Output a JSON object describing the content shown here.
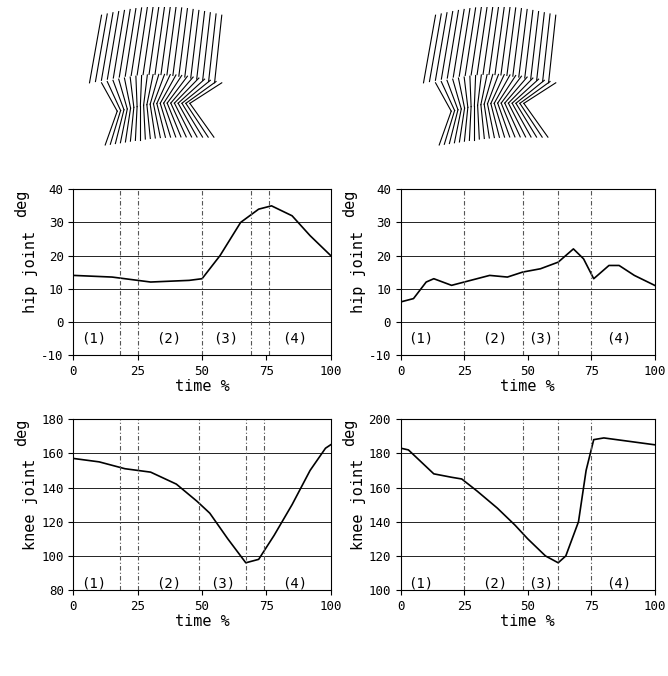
{
  "chart_data": [
    {
      "type": "line",
      "y_label": "hip joint",
      "y_unit": "deg",
      "x_label": "time %",
      "xlim": [
        0,
        100
      ],
      "xticks": [
        0,
        25,
        50,
        75,
        100
      ],
      "ylim": [
        -10,
        40
      ],
      "yticks": [
        -10,
        0,
        10,
        20,
        30,
        40
      ],
      "grid": true,
      "phase_boundaries": [
        18,
        25,
        50,
        69,
        76
      ],
      "annotations": [
        {
          "text": "(1)",
          "x": 8,
          "y": -5
        },
        {
          "text": "(2)",
          "x": 37,
          "y": -5
        },
        {
          "text": "(3)",
          "x": 59,
          "y": -5
        },
        {
          "text": "(4)",
          "x": 86,
          "y": -5
        }
      ],
      "series": [
        {
          "color": "#000000",
          "x": [
            0,
            15,
            30,
            45,
            50,
            57,
            65,
            72,
            77,
            85,
            92,
            100
          ],
          "values": [
            14,
            13.5,
            12,
            12.5,
            13,
            20,
            30,
            34,
            35,
            32,
            26,
            20
          ]
        }
      ]
    },
    {
      "type": "line",
      "y_label": "hip joint",
      "y_unit": "deg",
      "x_label": "time %",
      "xlim": [
        0,
        100
      ],
      "xticks": [
        0,
        25,
        50,
        75,
        100
      ],
      "ylim": [
        -10,
        40
      ],
      "yticks": [
        -10,
        0,
        10,
        20,
        30,
        40
      ],
      "grid": true,
      "phase_boundaries": [
        25,
        48,
        62,
        75
      ],
      "annotations": [
        {
          "text": "(1)",
          "x": 8,
          "y": -5
        },
        {
          "text": "(2)",
          "x": 37,
          "y": -5
        },
        {
          "text": "(3)",
          "x": 55,
          "y": -5
        },
        {
          "text": "(4)",
          "x": 86,
          "y": -5
        }
      ],
      "series": [
        {
          "color": "#000000",
          "x": [
            0,
            5,
            10,
            13,
            20,
            25,
            35,
            42,
            48,
            55,
            62,
            68,
            72,
            76,
            82,
            86,
            92,
            100
          ],
          "values": [
            6,
            7,
            12,
            13,
            11,
            12,
            14,
            13.5,
            15,
            16,
            18,
            22,
            19,
            13,
            17,
            17,
            14,
            11
          ]
        }
      ]
    },
    {
      "type": "line",
      "y_label": "knee joint",
      "y_unit": "deg",
      "x_label": "time %",
      "xlim": [
        0,
        100
      ],
      "xticks": [
        0,
        25,
        50,
        75,
        100
      ],
      "ylim": [
        80,
        180
      ],
      "yticks": [
        80,
        100,
        120,
        140,
        160,
        180
      ],
      "grid": true,
      "phase_boundaries": [
        18,
        25,
        49,
        67,
        74
      ],
      "annotations": [
        {
          "text": "(1)",
          "x": 8,
          "y": 84
        },
        {
          "text": "(2)",
          "x": 37,
          "y": 84
        },
        {
          "text": "(3)",
          "x": 58,
          "y": 84
        },
        {
          "text": "(4)",
          "x": 86,
          "y": 84
        }
      ],
      "series": [
        {
          "color": "#000000",
          "x": [
            0,
            10,
            20,
            30,
            40,
            48,
            53,
            60,
            67,
            72,
            78,
            85,
            92,
            98,
            100
          ],
          "values": [
            157,
            155,
            151,
            149,
            142,
            132,
            125,
            110,
            96,
            98,
            112,
            130,
            150,
            163,
            165
          ]
        }
      ]
    },
    {
      "type": "line",
      "y_label": "knee joint",
      "y_unit": "deg",
      "x_label": "time %",
      "xlim": [
        0,
        100
      ],
      "xticks": [
        0,
        25,
        50,
        75,
        100
      ],
      "ylim": [
        100,
        200
      ],
      "yticks": [
        100,
        120,
        140,
        160,
        180,
        200
      ],
      "grid": true,
      "phase_boundaries": [
        25,
        48,
        62,
        75
      ],
      "annotations": [
        {
          "text": "(1)",
          "x": 8,
          "y": 104
        },
        {
          "text": "(2)",
          "x": 37,
          "y": 104
        },
        {
          "text": "(3)",
          "x": 55,
          "y": 104
        },
        {
          "text": "(4)",
          "x": 86,
          "y": 104
        }
      ],
      "series": [
        {
          "color": "#000000",
          "x": [
            0,
            3,
            8,
            13,
            20,
            24,
            30,
            38,
            45,
            50,
            57,
            62,
            65,
            70,
            73,
            76,
            80,
            90,
            100
          ],
          "values": [
            183,
            182,
            175,
            168,
            166,
            165,
            158,
            148,
            138,
            130,
            120,
            116,
            120,
            140,
            170,
            188,
            189,
            187,
            185
          ]
        }
      ]
    }
  ]
}
